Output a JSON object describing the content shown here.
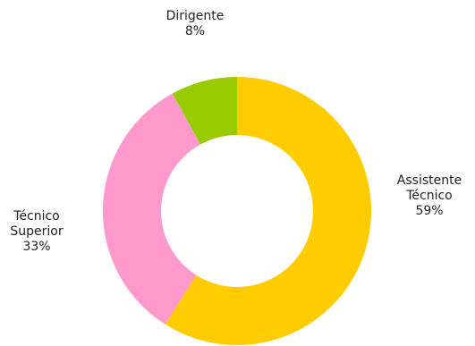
{
  "chart_data": {
    "type": "pie",
    "title": "",
    "donut": true,
    "slices": [
      {
        "label_lines": [
          "Assistente",
          "Técnico"
        ],
        "percent_label": "59%",
        "value": 59,
        "color": "#ffcc00"
      },
      {
        "label_lines": [
          "Técnico",
          "Superior"
        ],
        "percent_label": "33%",
        "value": 33,
        "color": "#ff99cc"
      },
      {
        "label_lines": [
          "Dirigente"
        ],
        "percent_label": "8%",
        "value": 8,
        "color": "#99cc00"
      }
    ]
  }
}
